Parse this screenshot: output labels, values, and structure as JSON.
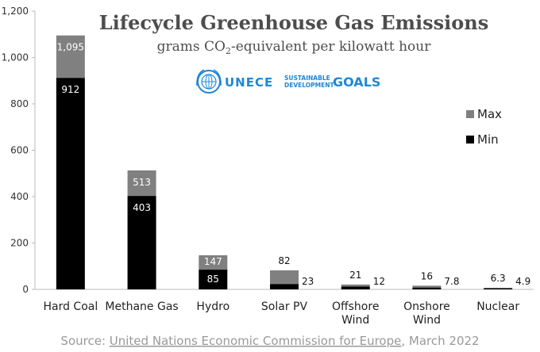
{
  "chart_data": {
    "type": "bar",
    "title": "Lifecycle Greenhouse Gas Emissions",
    "subtitle_pre": "grams CO",
    "subtitle_sub": "2",
    "subtitle_post": "-equivalent per kilowatt hour",
    "xlabel": "",
    "ylabel": "",
    "ylim": [
      0,
      1200
    ],
    "yticks": [
      0,
      200,
      400,
      600,
      800,
      1000,
      1200
    ],
    "ytick_labels": [
      "0",
      "200",
      "400",
      "600",
      "800",
      "1,000",
      "1,200"
    ],
    "categories": [
      [
        "Hard Coal"
      ],
      [
        "Methane Gas"
      ],
      [
        "Hydro"
      ],
      [
        "Solar PV"
      ],
      [
        "Offshore",
        "Wind"
      ],
      [
        "Onshore",
        "Wind"
      ],
      [
        "Nuclear"
      ]
    ],
    "series": [
      {
        "name": "Min",
        "color": "#000000",
        "values": [
          912,
          403,
          85,
          23,
          12,
          7.8,
          4.9
        ],
        "labels": [
          "912",
          "403",
          "85",
          "23",
          "12",
          "7.8",
          "4.9"
        ]
      },
      {
        "name": "Max",
        "color": "#808080",
        "values": [
          1095,
          513,
          147,
          82,
          21,
          16,
          6.3
        ],
        "labels": [
          "1,095",
          "513",
          "147",
          "82",
          "21",
          "16",
          "6.3"
        ]
      }
    ],
    "legend": [
      "Max",
      "Min"
    ],
    "legend_position": "right"
  },
  "logos": {
    "unece": "UNECE",
    "sdg_line1": "SUSTAINABLE",
    "sdg_line2": "DEVELOPMENT",
    "sdg_goals": "GOALS"
  },
  "source": {
    "prefix": "Source: ",
    "link": "United Nations Economic Commission for Europe",
    "suffix": ", March 2022"
  }
}
